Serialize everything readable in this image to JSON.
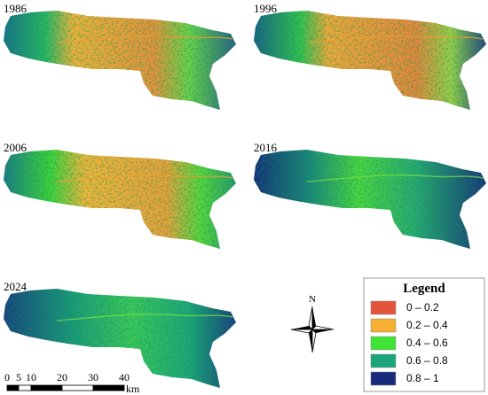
{
  "panels": [
    {
      "year": "1986"
    },
    {
      "year": "1996"
    },
    {
      "year": "2006"
    },
    {
      "year": "2016"
    },
    {
      "year": "2024"
    }
  ],
  "legend": {
    "title": "Legend",
    "items": [
      {
        "label": "0 – 0.2",
        "color": "#e2553c"
      },
      {
        "label": "0.2 – 0.4",
        "color": "#f4b030"
      },
      {
        "label": "0.4 – 0.6",
        "color": "#3fe236"
      },
      {
        "label": "0.6 – 0.8",
        "color": "#1aa57a"
      },
      {
        "label": "0.8 – 1",
        "color": "#182a7c"
      }
    ]
  },
  "north": "N",
  "scale_bar": {
    "labels": [
      "0",
      "5",
      "10",
      "20",
      "30",
      "40"
    ],
    "unit": "km"
  }
}
